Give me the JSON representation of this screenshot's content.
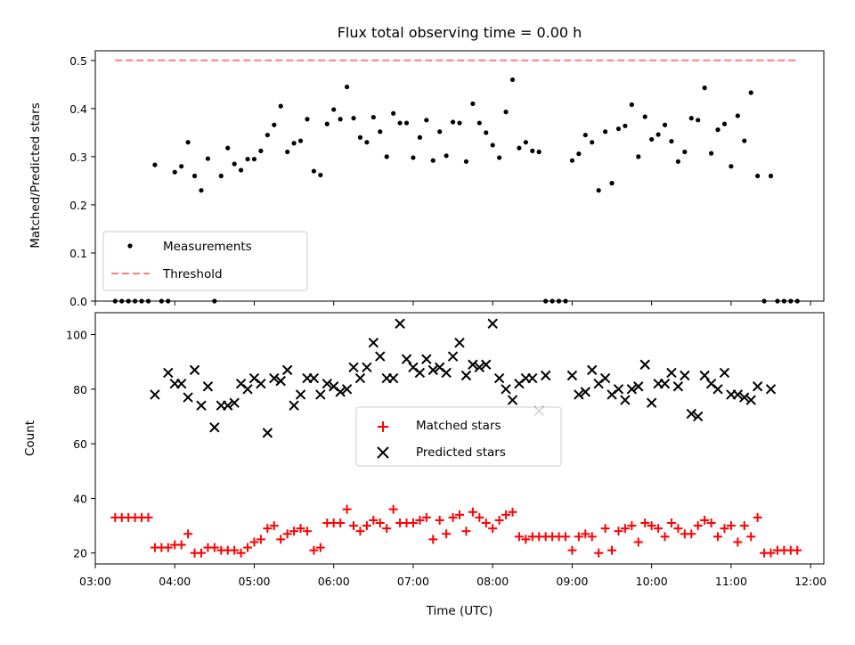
{
  "chart_data": [
    {
      "type": "scatter",
      "title": "Flux total observing time = 0.00 h",
      "xlabel": "",
      "ylabel": "Matched/Predicted stars",
      "ylim": [
        0,
        0.52
      ],
      "yticks": [
        "0.0",
        "0.1",
        "0.2",
        "0.3",
        "0.4",
        "0.5"
      ],
      "xlim": [
        "03:00",
        "12:10"
      ],
      "legend_position": "lower-left",
      "threshold": {
        "name": "Threshold",
        "value": 0.5,
        "x_start": "03:15",
        "x_end": "11:50",
        "color": "#ff7f7f",
        "style": "dashed"
      },
      "series": [
        {
          "name": "Measurements",
          "color": "#000000",
          "marker": "dot",
          "x": [
            "03:15",
            "03:20",
            "03:25",
            "03:30",
            "03:35",
            "03:40",
            "03:45",
            "03:50",
            "03:55",
            "04:00",
            "04:05",
            "04:10",
            "04:15",
            "04:20",
            "04:25",
            "04:30",
            "04:35",
            "04:40",
            "04:45",
            "04:50",
            "04:55",
            "05:00",
            "05:05",
            "05:10",
            "05:15",
            "05:20",
            "05:25",
            "05:30",
            "05:35",
            "05:40",
            "05:45",
            "05:50",
            "05:55",
            "06:00",
            "06:05",
            "06:10",
            "06:15",
            "06:20",
            "06:25",
            "06:30",
            "06:35",
            "06:40",
            "06:45",
            "06:50",
            "06:55",
            "07:00",
            "07:05",
            "07:10",
            "07:15",
            "07:20",
            "07:25",
            "07:30",
            "07:35",
            "07:40",
            "07:45",
            "07:50",
            "07:55",
            "08:00",
            "08:05",
            "08:10",
            "08:15",
            "08:20",
            "08:25",
            "08:30",
            "08:35",
            "08:40",
            "08:45",
            "08:50",
            "08:55",
            "09:00",
            "09:05",
            "09:10",
            "09:15",
            "09:20",
            "09:25",
            "09:30",
            "09:35",
            "09:40",
            "09:45",
            "09:50",
            "09:55",
            "10:00",
            "10:05",
            "10:10",
            "10:15",
            "10:20",
            "10:25",
            "10:30",
            "10:35",
            "10:40",
            "10:45",
            "10:50",
            "10:55",
            "11:00",
            "11:05",
            "11:10",
            "11:15",
            "11:20",
            "11:25",
            "11:30",
            "11:35",
            "11:40",
            "11:45",
            "11:50"
          ],
          "y": [
            0,
            0,
            0,
            0,
            0,
            0,
            0.283,
            0,
            0,
            0.268,
            0.28,
            0.33,
            0.26,
            0.23,
            0.296,
            0,
            0.26,
            0.318,
            0.285,
            0.272,
            0.295,
            0.295,
            0.312,
            0.345,
            0.366,
            0.405,
            0.31,
            0.328,
            0.333,
            0.378,
            0.27,
            0.262,
            0.368,
            0.398,
            0.378,
            0.445,
            0.38,
            0.34,
            0.33,
            0.382,
            0.352,
            0.3,
            0.39,
            0.37,
            0.37,
            0.298,
            0.34,
            0.376,
            0.292,
            0.352,
            0.302,
            0.372,
            0.37,
            0.29,
            0.41,
            0.37,
            0.35,
            0.324,
            0.298,
            0.393,
            0.46,
            0.318,
            0.33,
            0.312,
            0.31,
            0,
            0,
            0,
            0,
            0.292,
            0.306,
            0.345,
            0.33,
            0.23,
            0.352,
            0.245,
            0.358,
            0.364,
            0.408,
            0.3,
            0.383,
            0.336,
            0.346,
            0.366,
            0.332,
            0.29,
            0.31,
            0.38,
            0.376,
            0.443,
            0.307,
            0.356,
            0.368,
            0.28,
            0.385,
            0.333,
            0.433,
            0.26,
            0,
            0.26,
            0,
            0,
            0,
            0
          ]
        }
      ]
    },
    {
      "type": "scatter",
      "title": "",
      "xlabel": "Time (UTC)",
      "ylabel": "Count",
      "ylim": [
        16,
        108
      ],
      "yticks": [
        "20",
        "40",
        "60",
        "80",
        "100"
      ],
      "xlim": [
        "03:00",
        "12:10"
      ],
      "xticks": [
        "03:00",
        "04:00",
        "05:00",
        "06:00",
        "07:00",
        "08:00",
        "09:00",
        "10:00",
        "11:00",
        "12:00"
      ],
      "legend_position": "center",
      "series": [
        {
          "name": "Matched stars",
          "color": "#ff0000",
          "marker": "plus",
          "x": [
            "03:15",
            "03:20",
            "03:25",
            "03:30",
            "03:35",
            "03:40",
            "03:45",
            "03:50",
            "03:55",
            "04:00",
            "04:05",
            "04:10",
            "04:15",
            "04:20",
            "04:25",
            "04:30",
            "04:35",
            "04:40",
            "04:45",
            "04:50",
            "04:55",
            "05:00",
            "05:05",
            "05:10",
            "05:15",
            "05:20",
            "05:25",
            "05:30",
            "05:35",
            "05:40",
            "05:45",
            "05:50",
            "05:55",
            "06:00",
            "06:05",
            "06:10",
            "06:15",
            "06:20",
            "06:25",
            "06:30",
            "06:35",
            "06:40",
            "06:45",
            "06:50",
            "06:55",
            "07:00",
            "07:05",
            "07:10",
            "07:15",
            "07:20",
            "07:25",
            "07:30",
            "07:35",
            "07:40",
            "07:45",
            "07:50",
            "07:55",
            "08:00",
            "08:05",
            "08:10",
            "08:15",
            "08:20",
            "08:25",
            "08:30",
            "08:35",
            "08:40",
            "08:45",
            "08:50",
            "08:55",
            "09:00",
            "09:05",
            "09:10",
            "09:15",
            "09:20",
            "09:25",
            "09:30",
            "09:35",
            "09:40",
            "09:45",
            "09:50",
            "09:55",
            "10:00",
            "10:05",
            "10:10",
            "10:15",
            "10:20",
            "10:25",
            "10:30",
            "10:35",
            "10:40",
            "10:45",
            "10:50",
            "10:55",
            "11:00",
            "11:05",
            "11:10",
            "11:15",
            "11:20",
            "11:25",
            "11:30",
            "11:35",
            "11:40",
            "11:45",
            "11:50"
          ],
          "y": [
            33,
            33,
            33,
            33,
            33,
            33,
            22,
            22,
            22,
            23,
            23,
            27,
            20,
            20,
            22,
            22,
            21,
            21,
            21,
            20,
            22,
            24,
            25,
            29,
            30,
            25,
            27,
            28,
            29,
            28,
            21,
            22,
            31,
            31,
            31,
            36,
            30,
            28,
            30,
            32,
            31,
            29,
            36,
            31,
            31,
            31,
            32,
            33,
            25,
            32,
            27,
            33,
            34,
            28,
            35,
            33,
            31,
            29,
            32,
            34,
            35,
            26,
            25,
            26,
            26,
            26,
            26,
            26,
            26,
            21,
            26,
            27,
            26,
            20,
            29,
            21,
            28,
            29,
            30,
            24,
            31,
            30,
            29,
            26,
            31,
            29,
            27,
            27,
            30,
            32,
            31,
            26,
            29,
            30,
            24,
            30,
            26,
            33,
            20,
            20,
            21,
            21,
            21,
            21
          ]
        },
        {
          "name": "Predicted stars",
          "color": "#000000",
          "marker": "x",
          "x": [
            "03:45",
            "03:55",
            "04:00",
            "04:05",
            "04:10",
            "04:15",
            "04:20",
            "04:25",
            "04:30",
            "04:35",
            "04:40",
            "04:45",
            "04:50",
            "04:55",
            "05:00",
            "05:05",
            "05:10",
            "05:15",
            "05:20",
            "05:25",
            "05:30",
            "05:35",
            "05:40",
            "05:45",
            "05:50",
            "05:55",
            "06:00",
            "06:05",
            "06:10",
            "06:15",
            "06:20",
            "06:25",
            "06:30",
            "06:35",
            "06:40",
            "06:45",
            "06:50",
            "06:55",
            "07:00",
            "07:05",
            "07:10",
            "07:15",
            "07:20",
            "07:25",
            "07:30",
            "07:35",
            "07:40",
            "07:45",
            "07:50",
            "07:55",
            "08:00",
            "08:05",
            "08:10",
            "08:15",
            "08:20",
            "08:25",
            "08:30",
            "08:35",
            "08:40",
            "09:00",
            "09:05",
            "09:10",
            "09:15",
            "09:20",
            "09:25",
            "09:30",
            "09:35",
            "09:40",
            "09:45",
            "09:50",
            "09:55",
            "10:00",
            "10:05",
            "10:10",
            "10:15",
            "10:20",
            "10:25",
            "10:30",
            "10:35",
            "10:40",
            "10:45",
            "10:50",
            "10:55",
            "11:00",
            "11:05",
            "11:10",
            "11:15",
            "11:20",
            "11:30"
          ],
          "y": [
            78,
            86,
            82,
            82,
            77,
            87,
            74,
            81,
            66,
            74,
            74,
            75,
            82,
            80,
            84,
            82,
            64,
            84,
            83,
            87,
            74,
            78,
            84,
            84,
            78,
            82,
            81,
            79,
            80,
            88,
            84,
            88,
            97,
            92,
            84,
            84,
            104,
            91,
            88,
            86,
            91,
            87,
            88,
            86,
            92,
            97,
            85,
            89,
            88,
            89,
            104,
            84,
            80,
            76,
            82,
            84,
            84,
            72,
            85,
            85,
            78,
            79,
            87,
            82,
            84,
            78,
            80,
            76,
            80,
            81,
            89,
            75,
            82,
            82,
            86,
            81,
            85,
            71,
            70,
            85,
            82,
            80,
            86,
            78,
            78,
            77,
            76,
            81,
            80
          ]
        }
      ]
    }
  ]
}
